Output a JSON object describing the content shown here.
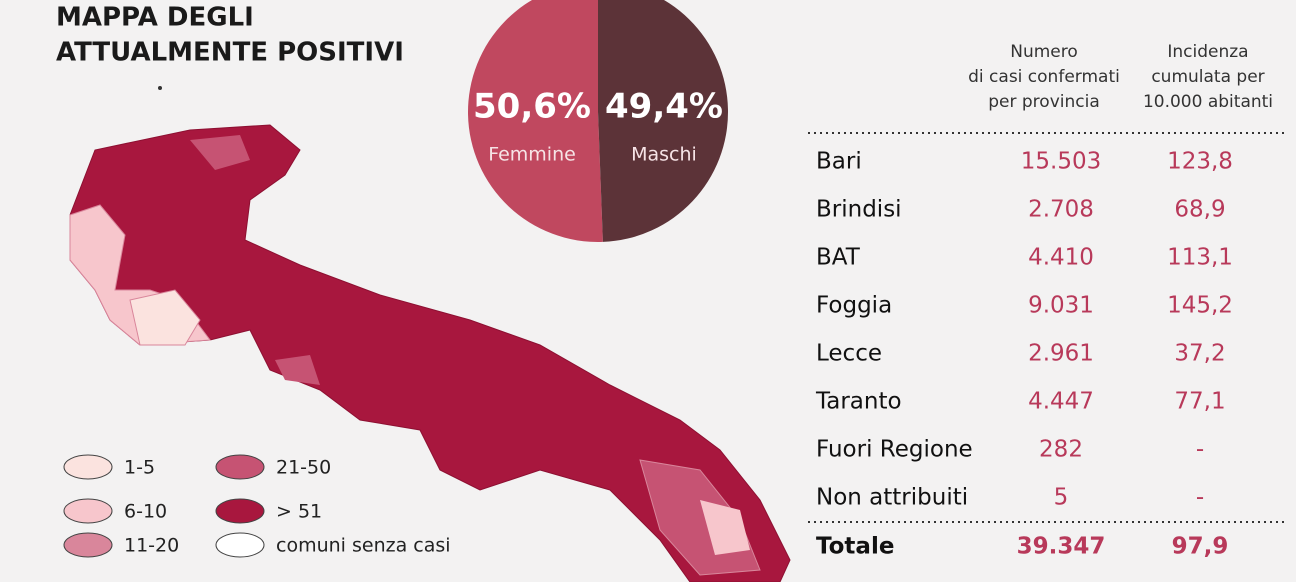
{
  "title": [
    "MAPPA DEGLI",
    "ATTUALMENTE POSITIVI"
  ],
  "chart_data": {
    "type": "pie",
    "categories": [
      "Femmine",
      "Maschi"
    ],
    "values": [
      50.6,
      49.4
    ],
    "value_labels": [
      "50,6%",
      "49,4%"
    ],
    "colors": [
      "#c0485f",
      "#5c3338"
    ]
  },
  "legend": [
    {
      "label": "1-5",
      "color": "#fbe3df"
    },
    {
      "label": "6-10",
      "color": "#f7c6cc"
    },
    {
      "label": "11-20",
      "color": "#d9869b"
    },
    {
      "label": "21-50",
      "color": "#c65373"
    },
    {
      "label": "> 51",
      "color": "#a8173e"
    },
    {
      "label": "comuni senza casi",
      "color": "#ffffff"
    }
  ],
  "table": {
    "headers": [
      [
        "Numero",
        "di casi confermati",
        "per provincia"
      ],
      [
        "Incidenza",
        "cumulata per",
        "10.000 abitanti"
      ]
    ],
    "rows": [
      [
        "Bari",
        "15.503",
        "123,8"
      ],
      [
        "Brindisi",
        "2.708",
        "68,9"
      ],
      [
        "BAT",
        "4.410",
        "113,1"
      ],
      [
        "Foggia",
        "9.031",
        "145,2"
      ],
      [
        "Lecce",
        "2.961",
        "37,2"
      ],
      [
        "Taranto",
        "4.447",
        "77,1"
      ],
      [
        "Fuori Regione",
        "282",
        "-"
      ],
      [
        "Non attribuiti",
        "5",
        "-"
      ]
    ],
    "total": [
      "Totale",
      "39.347",
      "97,9"
    ]
  }
}
